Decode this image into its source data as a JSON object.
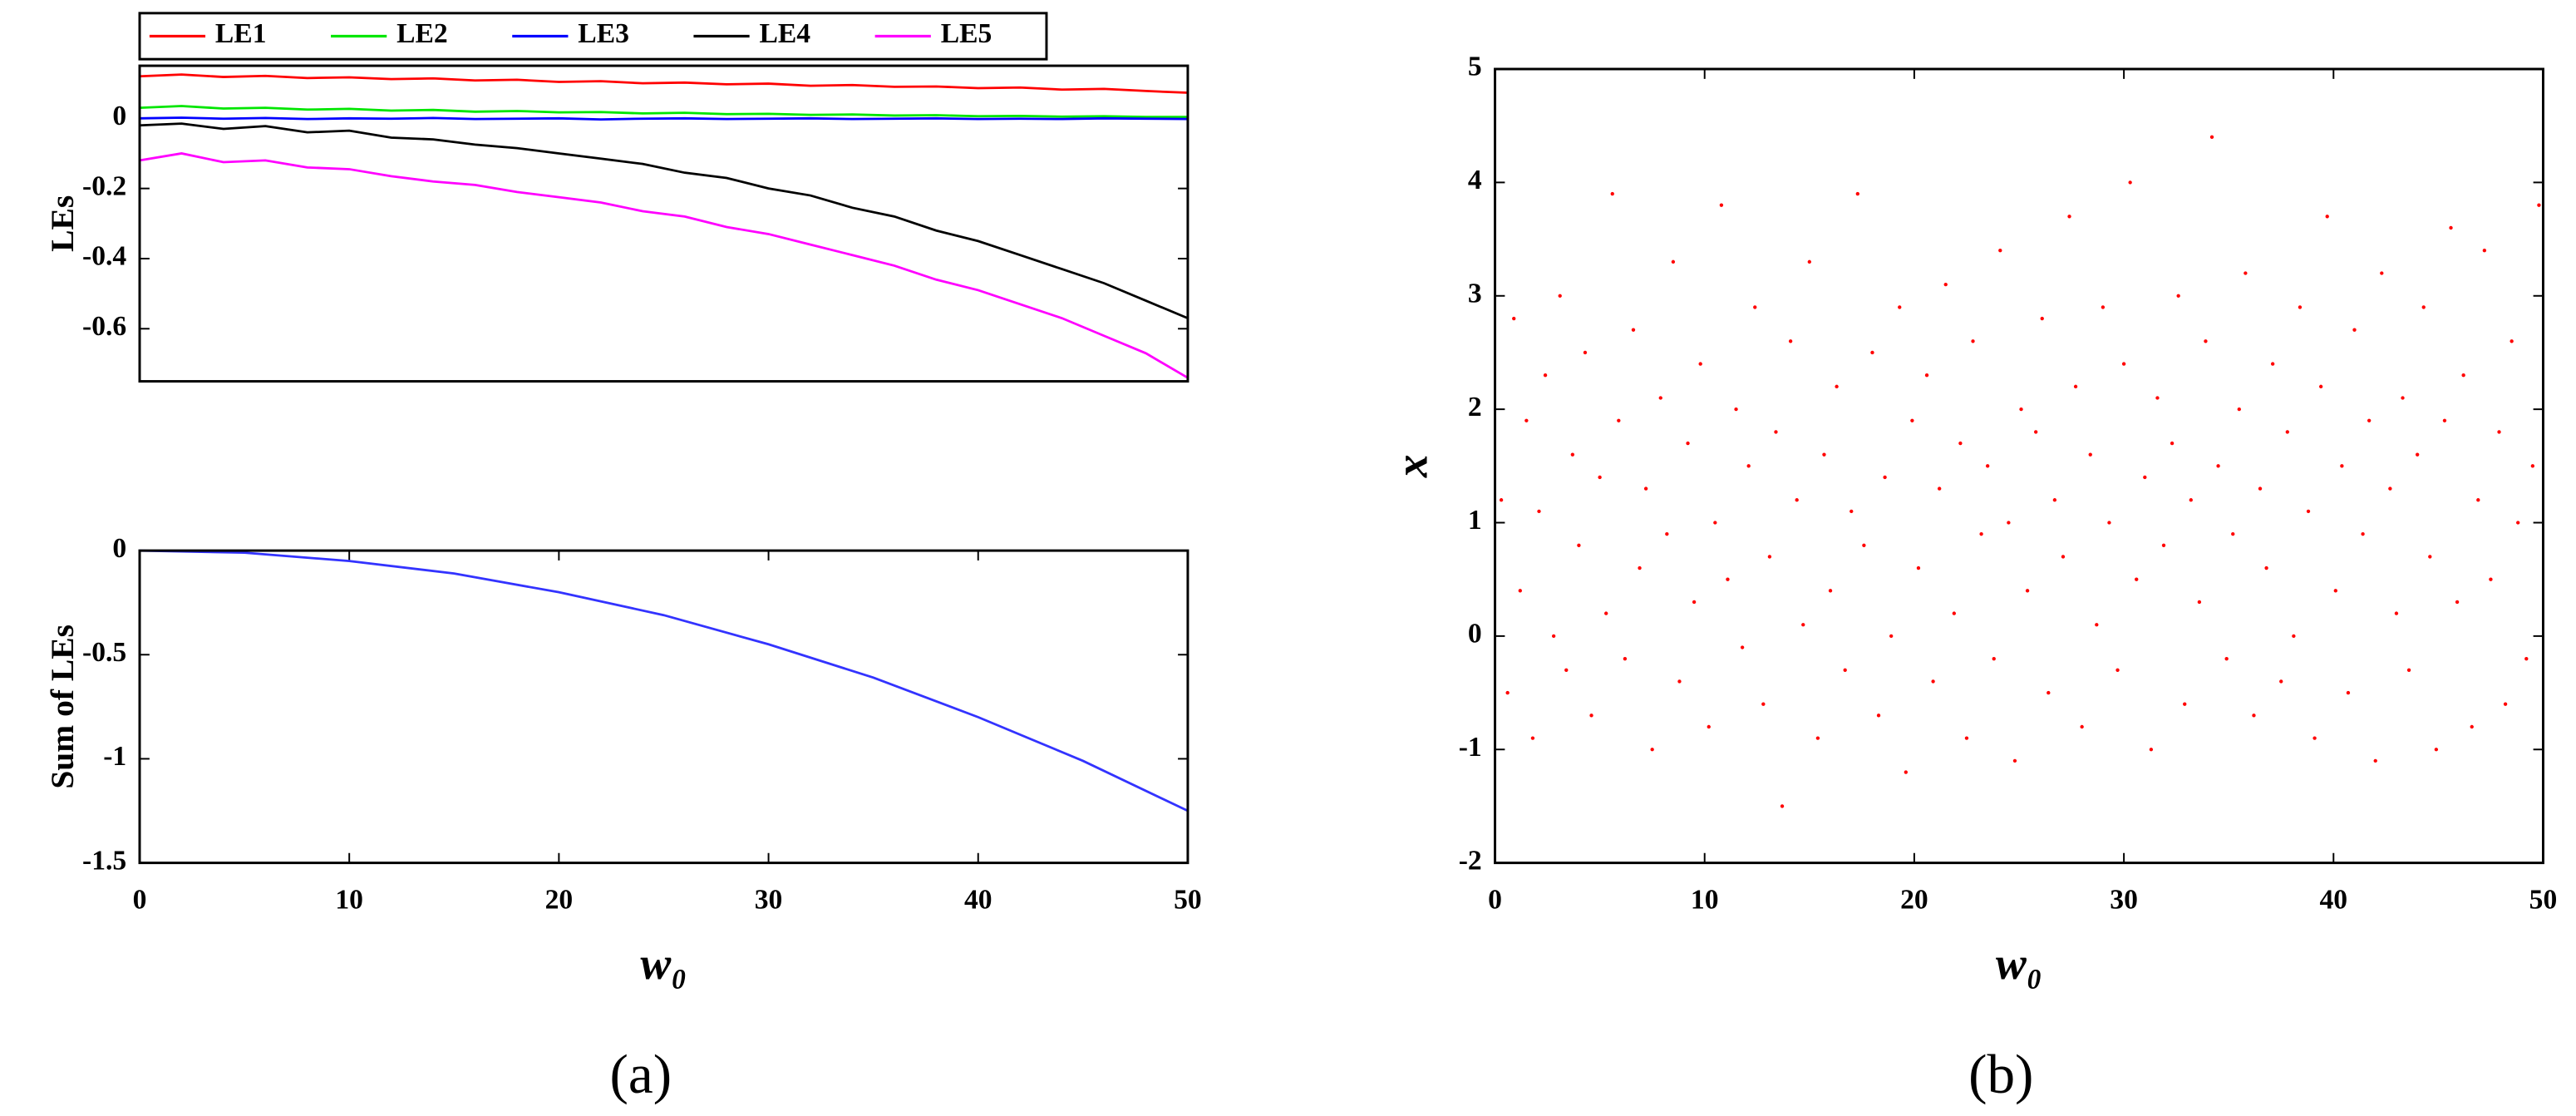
{
  "chart_data": [
    {
      "type": "line",
      "ylabel": "LEs",
      "x": [
        0,
        2,
        4,
        6,
        8,
        10,
        12,
        14,
        16,
        18,
        20,
        22,
        24,
        26,
        28,
        30,
        32,
        34,
        36,
        38,
        40,
        42,
        44,
        46,
        48,
        50
      ],
      "series": [
        {
          "name": "LE1",
          "color": "#ff0000",
          "values": [
            0.12,
            0.125,
            0.118,
            0.121,
            0.115,
            0.117,
            0.112,
            0.114,
            0.108,
            0.11,
            0.104,
            0.106,
            0.1,
            0.102,
            0.097,
            0.099,
            0.093,
            0.095,
            0.09,
            0.091,
            0.086,
            0.088,
            0.082,
            0.084,
            0.078,
            0.073
          ]
        },
        {
          "name": "LE2",
          "color": "#00e600",
          "values": [
            0.03,
            0.035,
            0.028,
            0.03,
            0.025,
            0.027,
            0.022,
            0.024,
            0.019,
            0.021,
            0.017,
            0.018,
            0.014,
            0.016,
            0.012,
            0.013,
            0.01,
            0.011,
            0.008,
            0.009,
            0.006,
            0.007,
            0.005,
            0.006,
            0.004,
            0.004
          ]
        },
        {
          "name": "LE3",
          "color": "#0000ff",
          "values": [
            0,
            0.002,
            -0.001,
            0.001,
            -0.002,
            0,
            -0.001,
            0.001,
            -0.002,
            -0.001,
            0,
            -0.003,
            -0.001,
            0,
            -0.002,
            -0.001,
            0,
            -0.002,
            -0.001,
            0,
            -0.002,
            -0.001,
            -0.002,
            0,
            -0.001,
            -0.002
          ]
        },
        {
          "name": "LE4",
          "color": "#000000",
          "values": [
            -0.02,
            -0.015,
            -0.03,
            -0.022,
            -0.04,
            -0.035,
            -0.055,
            -0.06,
            -0.075,
            -0.085,
            -0.1,
            -0.115,
            -0.13,
            -0.155,
            -0.17,
            -0.2,
            -0.22,
            -0.255,
            -0.28,
            -0.32,
            -0.35,
            -0.39,
            -0.43,
            -0.47,
            -0.52,
            -0.57
          ]
        },
        {
          "name": "LE5",
          "color": "#ff00ff",
          "values": [
            -0.12,
            -0.1,
            -0.125,
            -0.12,
            -0.14,
            -0.145,
            -0.165,
            -0.18,
            -0.19,
            -0.21,
            -0.225,
            -0.24,
            -0.265,
            -0.28,
            -0.31,
            -0.33,
            -0.36,
            -0.39,
            -0.42,
            -0.46,
            -0.49,
            -0.53,
            -0.57,
            -0.62,
            -0.67,
            -0.74
          ]
        }
      ],
      "xlim": [
        0,
        50
      ],
      "ylim": [
        -0.75,
        0.15
      ],
      "yticks": [
        0,
        -0.2,
        -0.4,
        -0.6
      ],
      "legend": "top"
    },
    {
      "type": "line",
      "ylabel": "Sum of LEs",
      "xlabel": "w₀",
      "x": [
        0,
        5,
        10,
        15,
        20,
        25,
        30,
        35,
        40,
        45,
        50
      ],
      "series": [
        {
          "color": "#3333ff",
          "values": [
            0,
            -0.01,
            -0.05,
            -0.11,
            -0.2,
            -0.31,
            -0.45,
            -0.61,
            -0.8,
            -1.01,
            -1.25
          ]
        }
      ],
      "xlim": [
        0,
        50
      ],
      "ylim": [
        -1.5,
        0
      ],
      "xticks": [
        0,
        10,
        20,
        30,
        40,
        50
      ],
      "yticks": [
        0,
        -0.5,
        -1,
        -1.5
      ]
    },
    {
      "type": "scatter",
      "ylabel": "x",
      "xlabel": "w₀",
      "color": "#ff0000",
      "x": [
        0.3,
        0.6,
        0.9,
        1.2,
        1.5,
        1.8,
        2.1,
        2.4,
        2.8,
        3.1,
        3.4,
        3.7,
        4.0,
        4.3,
        4.6,
        5.0,
        5.3,
        5.6,
        5.9,
        6.2,
        6.6,
        6.9,
        7.2,
        7.5,
        7.9,
        8.2,
        8.5,
        8.8,
        9.2,
        9.5,
        9.8,
        10.2,
        10.5,
        10.8,
        11.1,
        11.5,
        11.8,
        12.1,
        12.4,
        12.8,
        13.1,
        13.4,
        13.7,
        14.1,
        14.4,
        14.7,
        15.0,
        15.4,
        15.7,
        16.0,
        16.3,
        16.7,
        17.0,
        17.3,
        17.6,
        18.0,
        18.3,
        18.6,
        18.9,
        19.3,
        19.6,
        19.9,
        20.2,
        20.6,
        20.9,
        21.2,
        21.5,
        21.9,
        22.2,
        22.5,
        22.8,
        23.2,
        23.5,
        23.8,
        24.1,
        24.5,
        24.8,
        25.1,
        25.4,
        25.8,
        26.1,
        26.4,
        26.7,
        27.1,
        27.4,
        27.7,
        28.0,
        28.4,
        28.7,
        29.0,
        29.3,
        29.7,
        30.0,
        30.3,
        30.6,
        31.0,
        31.3,
        31.6,
        31.9,
        32.3,
        32.6,
        32.9,
        33.2,
        33.6,
        33.9,
        34.2,
        34.5,
        34.9,
        35.2,
        35.5,
        35.8,
        36.2,
        36.5,
        36.8,
        37.1,
        37.5,
        37.8,
        38.1,
        38.4,
        38.8,
        39.1,
        39.4,
        39.7,
        40.1,
        40.4,
        40.7,
        41.0,
        41.4,
        41.7,
        42.0,
        42.3,
        42.7,
        43.0,
        43.3,
        43.6,
        44.0,
        44.3,
        44.6,
        44.9,
        45.3,
        45.6,
        45.9,
        46.2,
        46.6,
        46.9,
        47.2,
        47.5,
        47.9,
        48.2,
        48.5,
        48.8,
        49.2,
        49.5,
        49.8
      ],
      "values": [
        1.2,
        -0.5,
        2.8,
        0.4,
        1.9,
        -0.9,
        1.1,
        2.3,
        0.0,
        3.0,
        -0.3,
        1.6,
        0.8,
        2.5,
        -0.7,
        1.4,
        0.2,
        3.9,
        1.9,
        -0.2,
        2.7,
        0.6,
        1.3,
        -1.0,
        2.1,
        0.9,
        3.3,
        -0.4,
        1.7,
        0.3,
        2.4,
        -0.8,
        1.0,
        3.8,
        0.5,
        2.0,
        -0.1,
        1.5,
        2.9,
        -0.6,
        0.7,
        1.8,
        -1.5,
        2.6,
        1.2,
        0.1,
        3.3,
        -0.9,
        1.6,
        0.4,
        2.2,
        -0.3,
        1.1,
        3.9,
        0.8,
        2.5,
        -0.7,
        1.4,
        0.0,
        2.9,
        -1.2,
        1.9,
        0.6,
        2.3,
        -0.4,
        1.3,
        3.1,
        0.2,
        1.7,
        -0.9,
        2.6,
        0.9,
        1.5,
        -0.2,
        3.4,
        1.0,
        -1.1,
        2.0,
        0.4,
        1.8,
        2.8,
        -0.5,
        1.2,
        0.7,
        3.7,
        2.2,
        -0.8,
        1.6,
        0.1,
        2.9,
        1.0,
        -0.3,
        2.4,
        4.0,
        0.5,
        1.4,
        -1.0,
        2.1,
        0.8,
        1.7,
        3.0,
        -0.6,
        1.2,
        0.3,
        2.6,
        4.4,
        1.5,
        -0.2,
        0.9,
        2.0,
        3.2,
        -0.7,
        1.3,
        0.6,
        2.4,
        -0.4,
        1.8,
        0.0,
        2.9,
        1.1,
        -0.9,
        2.2,
        3.7,
        0.4,
        1.5,
        -0.5,
        2.7,
        0.9,
        1.9,
        -1.1,
        3.2,
        1.3,
        0.2,
        2.1,
        -0.3,
        1.6,
        2.9,
        0.7,
        -1.0,
        1.9,
        3.6,
        0.3,
        2.3,
        -0.8,
        1.2,
        3.4,
        0.5,
        1.8,
        -0.6,
        2.6,
        1.0,
        -0.2,
        1.5,
        3.8
      ],
      "xlim": [
        0,
        50
      ],
      "ylim": [
        -2,
        5
      ],
      "xticks": [
        0,
        10,
        20,
        30,
        40,
        50
      ],
      "yticks": [
        -2,
        -1,
        0,
        1,
        2,
        3,
        4,
        5
      ]
    }
  ],
  "panel_labels": [
    "(a)",
    "(b)"
  ]
}
